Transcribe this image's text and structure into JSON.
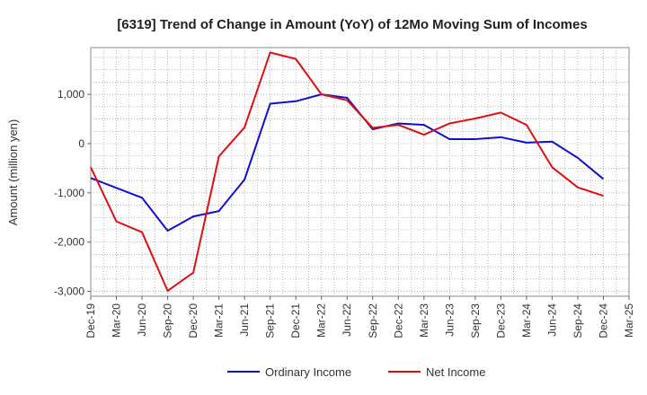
{
  "chart_data": {
    "type": "line",
    "title": "[6319]  Trend of Change in Amount (YoY) of 12Mo Moving Sum of Incomes",
    "xlabel": "",
    "ylabel": "Amount (million yen)",
    "ylim": [
      -3100,
      1950
    ],
    "yticks": [
      -3000,
      -2000,
      -1000,
      0,
      1000
    ],
    "ytick_labels": [
      "-3,000",
      "-2,000",
      "-1,000",
      "0",
      "1,000"
    ],
    "x": [
      "Dec-19",
      "Mar-20",
      "Jun-20",
      "Sep-20",
      "Dec-20",
      "Mar-21",
      "Jun-21",
      "Sep-21",
      "Dec-21",
      "Mar-22",
      "Jun-22",
      "Sep-22",
      "Dec-22",
      "Mar-23",
      "Jun-23",
      "Sep-23",
      "Dec-23",
      "Mar-24",
      "Jun-24",
      "Sep-24",
      "Dec-24",
      "Mar-25"
    ],
    "grid": true,
    "legend_position": "bottom",
    "series": [
      {
        "name": "Ordinary Income",
        "color": "#1010d0",
        "values": [
          -700,
          -900,
          -1100,
          -1770,
          -1480,
          -1370,
          -730,
          810,
          860,
          1000,
          930,
          290,
          410,
          380,
          90,
          90,
          130,
          20,
          40,
          -290,
          -720,
          null
        ]
      },
      {
        "name": "Net Income",
        "color": "#e01010",
        "values": [
          -480,
          -1580,
          -1800,
          -2990,
          -2620,
          -260,
          330,
          1850,
          1720,
          1000,
          880,
          320,
          380,
          180,
          410,
          510,
          630,
          380,
          -480,
          -890,
          -1060,
          null
        ]
      }
    ]
  }
}
